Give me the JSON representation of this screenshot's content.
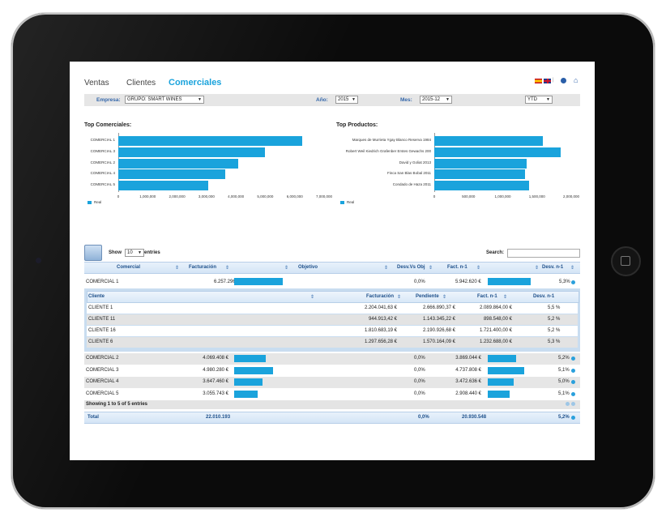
{
  "nav": {
    "ventas": "Ventas",
    "clientes": "Clientes",
    "comerciales": "Comerciales"
  },
  "filters": {
    "empresa_label": "Empresa:",
    "empresa_value": "GRUPO: SMART WINES",
    "anio_label": "Año:",
    "anio_value": "2015",
    "mes_label": "Mes:",
    "mes_value": "2015-12",
    "period_value": "YTD"
  },
  "chart_data": [
    {
      "type": "bar",
      "title": "Top Comerciales:",
      "categories": [
        "COMERCIAL 1",
        "COMERCIAL 3",
        "COMERCIAL 2",
        "COMERCIAL 4",
        "COMERCIAL 5"
      ],
      "series": [
        {
          "name": "Real",
          "values": [
            6257296,
            4980280,
            4069408,
            3647460,
            3055743
          ]
        }
      ],
      "xlim": [
        0,
        7000000
      ],
      "ticks": [
        "0",
        "1,000,000",
        "2,000,000",
        "3,000,000",
        "4,000,000",
        "5,000,000",
        "6,000,000",
        "7,000,000"
      ],
      "tick_values": [
        0,
        1000000,
        2000000,
        3000000,
        4000000,
        5000000,
        6000000,
        7000000
      ]
    },
    {
      "type": "bar",
      "title": "Top Productos:",
      "categories": [
        "Marques de Murrieta Ygay Blanco Reserva 1984",
        "Robert Weil Kiedrich Grafenber Erstes Gewachs 200",
        "David y Goliat 2013",
        "Finca San Blas Bobal 2011",
        "Condado de Haza 2011"
      ],
      "series": [
        {
          "name": "Real",
          "values": [
            1590000,
            1850000,
            1350000,
            1330000,
            1390000
          ]
        }
      ],
      "xlim": [
        0,
        2000000
      ],
      "ticks": [
        "0",
        "500,000",
        "1,000,000",
        "1,500,000",
        "2,000,000"
      ],
      "tick_values": [
        0,
        500000,
        1000000,
        1500000,
        2000000
      ]
    }
  ],
  "table": {
    "show_label": "Show",
    "entries_value": "10",
    "entries_label": "entries",
    "search_label": "Search:",
    "headers": {
      "comercial": "Comercial",
      "facturacion": "Facturación",
      "objetivo": "Objetivo",
      "desv_obj": "Desv.Vs Obj",
      "fact_n1": "Fact. n-1",
      "desv_n1": "Desv. n-1"
    },
    "rows": [
      {
        "name": "COMERCIAL 1",
        "facturacion": "6.257.296 €",
        "fact_pct": 1.0,
        "desv_obj": "0,0%",
        "fact_n1": "5.942.620 €",
        "n1_pct": 0.95,
        "desv_n1": "5,3%"
      },
      {
        "name": "COMERCIAL 2",
        "facturacion": "4.069.408 €",
        "fact_pct": 0.65,
        "desv_obj": "0,0%",
        "fact_n1": "3.869.044 €",
        "n1_pct": 0.62,
        "desv_n1": "5,2%"
      },
      {
        "name": "COMERCIAL 3",
        "facturacion": "4.980.280 €",
        "fact_pct": 0.8,
        "desv_obj": "0,0%",
        "fact_n1": "4.737.808 €",
        "n1_pct": 0.8,
        "desv_n1": "5,1%"
      },
      {
        "name": "COMERCIAL 4",
        "facturacion": "3.647.460 €",
        "fact_pct": 0.58,
        "desv_obj": "0,0%",
        "fact_n1": "3.472.636 €",
        "n1_pct": 0.58,
        "desv_n1": "5,0%"
      },
      {
        "name": "COMERCIAL 5",
        "facturacion": "3.055.743 €",
        "fact_pct": 0.49,
        "desv_obj": "0,0%",
        "fact_n1": "2.908.440 €",
        "n1_pct": 0.49,
        "desv_n1": "5,1%"
      }
    ],
    "sub": {
      "headers": {
        "cliente": "Cliente",
        "facturacion": "Facturación",
        "pendiente": "Pendiente",
        "fact_n1": "Fact. n-1",
        "desv_n1": "Desv. n-1"
      },
      "rows": [
        {
          "cliente": "CLIENTE 1",
          "facturacion": "2.204.041,63 €",
          "pendiente": "2.666.890,37 €",
          "fact_n1": "2.089.864,00 €",
          "desv_n1": "5,5 %"
        },
        {
          "cliente": "CLIENTE 11",
          "facturacion": "944.913,42 €",
          "pendiente": "1.143.345,22 €",
          "fact_n1": "898.548,00 €",
          "desv_n1": "5,2 %"
        },
        {
          "cliente": "CLIENTE 16",
          "facturacion": "1.810.683,19 €",
          "pendiente": "2.190.926,68 €",
          "fact_n1": "1.721.400,00 €",
          "desv_n1": "5,2 %"
        },
        {
          "cliente": "CLIENTE 6",
          "facturacion": "1.297.656,28 €",
          "pendiente": "1.570.164,09 €",
          "fact_n1": "1.232.688,00 €",
          "desv_n1": "5,3 %"
        }
      ]
    },
    "info": "Showing 1 to 5 of 5 entries",
    "total": {
      "label": "Total",
      "facturacion": "22.010.193",
      "desv_obj": "0,0%",
      "fact_n1": "20.930.548",
      "desv_n1": "5,2%"
    }
  },
  "colors": {
    "accent": "#1aa3dc",
    "header_text": "#1d4f8a"
  },
  "icons": [
    "spain-flag-icon",
    "uk-flag-icon",
    "info-icon",
    "home-icon",
    "table-settings-icon"
  ]
}
